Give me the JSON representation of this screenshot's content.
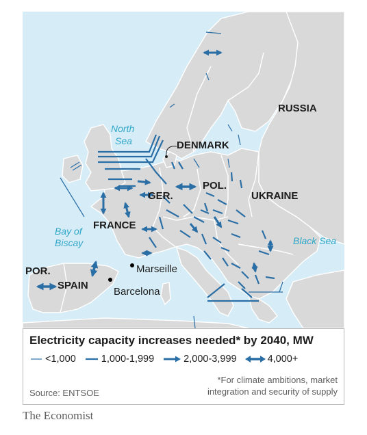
{
  "map": {
    "countries": {
      "russia": "RUSSIA",
      "denmark": "DENMARK",
      "germany": "GER.",
      "poland": "POL.",
      "ukraine": "UKRAINE",
      "france": "FRANCE",
      "portugal": "POR.",
      "spain": "SPAIN"
    },
    "seas": {
      "north_sea_1": "North",
      "north_sea_2": "Sea",
      "bay_of_biscay_1": "Bay of",
      "bay_of_biscay_2": "Biscay",
      "black_sea": "Black Sea"
    },
    "cities": {
      "marseille": "Marseille",
      "barcelona": "Barcelona"
    },
    "colors": {
      "sea": "#d6ecf6",
      "land": "#d9d9d9",
      "border": "#ffffff",
      "link": "#2a6ea6",
      "red_tag": "#e3120b"
    }
  },
  "legend": {
    "title": "Electricity capacity increases needed* by 2040, MW",
    "categories": [
      {
        "label": "<1,000",
        "style": "thin"
      },
      {
        "label": "1,000-1,999",
        "style": "medium"
      },
      {
        "label": "2,000-3,999",
        "style": "thick-arrow"
      },
      {
        "label": "4,000+",
        "style": "double-arrow"
      }
    ],
    "footnote_line1": "*For climate ambitions, market",
    "footnote_line2": "integration and security of supply",
    "source": "Source: ENTSOE"
  },
  "brand": "The Economist"
}
